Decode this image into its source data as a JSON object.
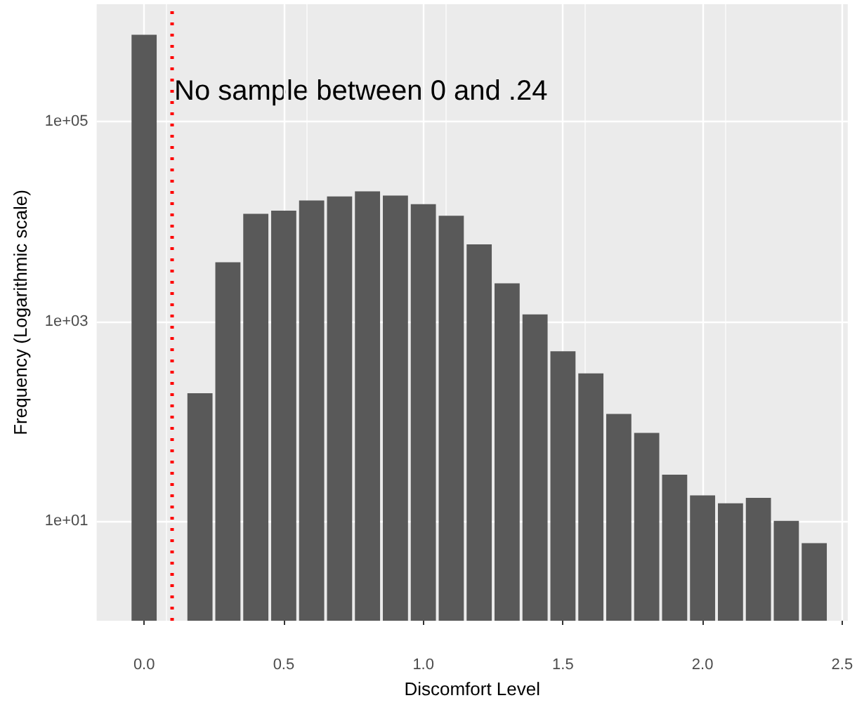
{
  "chart_data": {
    "type": "bar",
    "xlabel": "Discomfort Level",
    "ylabel": "Frequency (Logarithmic scale)",
    "x": [
      0,
      0.2,
      0.3,
      0.4,
      0.5,
      0.6,
      0.7,
      0.8,
      0.9,
      1.0,
      1.1,
      1.2,
      1.3,
      1.4,
      1.5,
      1.6,
      1.7,
      1.8,
      1.9,
      2.0,
      2.1,
      2.2,
      2.3,
      2.4
    ],
    "values": [
      740000,
      190,
      3900,
      11900,
      12800,
      16200,
      17800,
      20000,
      18200,
      14900,
      11400,
      5900,
      2400,
      1170,
      500,
      300,
      118,
      76,
      29,
      18,
      15,
      17,
      10,
      6
    ],
    "color": "#595959",
    "log": true,
    "xlim": [
      -0.17,
      2.52
    ],
    "xticks": [
      {
        "value": 0,
        "label": "0.0"
      },
      {
        "value": 0.5,
        "label": "0.5"
      },
      {
        "value": 1,
        "label": "1.0"
      },
      {
        "value": 1.5,
        "label": "1.5"
      },
      {
        "value": 2,
        "label": "2.0"
      },
      {
        "value": 2.5,
        "label": "2.5"
      }
    ],
    "ylim": [
      1,
      1500000
    ],
    "yticks": [
      {
        "value": 10,
        "label": "1e+01"
      },
      {
        "value": 1000,
        "label": "1e+03"
      },
      {
        "value": 100000,
        "label": "1e+05"
      }
    ],
    "grid": true,
    "ref_lines": [
      {
        "axis": "x",
        "value": 0.1,
        "color": "#ff0000",
        "line_style": "dotted"
      }
    ],
    "annotations": [
      "No sample between 0 and .24"
    ]
  }
}
